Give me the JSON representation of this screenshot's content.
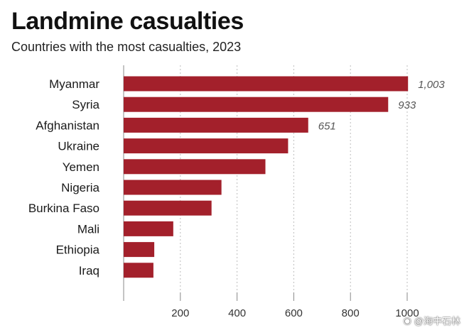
{
  "title": "Landmine casualties",
  "subtitle": "Countries with the most casualties, 2023",
  "colors": {
    "bar": "#a3202b",
    "grid": "#bdbdbd",
    "axis": "#888888",
    "tick_text": "#333333",
    "value_label": "#555555"
  },
  "watermark": {
    "icon": "weibo-icon",
    "text": "@海中石林"
  },
  "chart_data": {
    "type": "bar",
    "orientation": "horizontal",
    "categories": [
      "Myanmar",
      "Syria",
      "Afghanistan",
      "Ukraine",
      "Yemen",
      "Nigeria",
      "Burkina Faso",
      "Mali",
      "Ethiopia",
      "Iraq"
    ],
    "values": [
      1003,
      933,
      651,
      580,
      500,
      345,
      310,
      175,
      108,
      105
    ],
    "data_labels": [
      "1,003",
      "933",
      "651",
      "",
      "",
      "",
      "",
      "",
      "",
      ""
    ],
    "xticks": [
      200,
      400,
      600,
      800,
      1000
    ],
    "xtick_labels": [
      "200",
      "400",
      "600",
      "800",
      "1000"
    ],
    "xlim": [
      0,
      1000
    ],
    "xlabel": "",
    "ylabel": "",
    "grid": "vertical dotted",
    "legend": "none"
  }
}
